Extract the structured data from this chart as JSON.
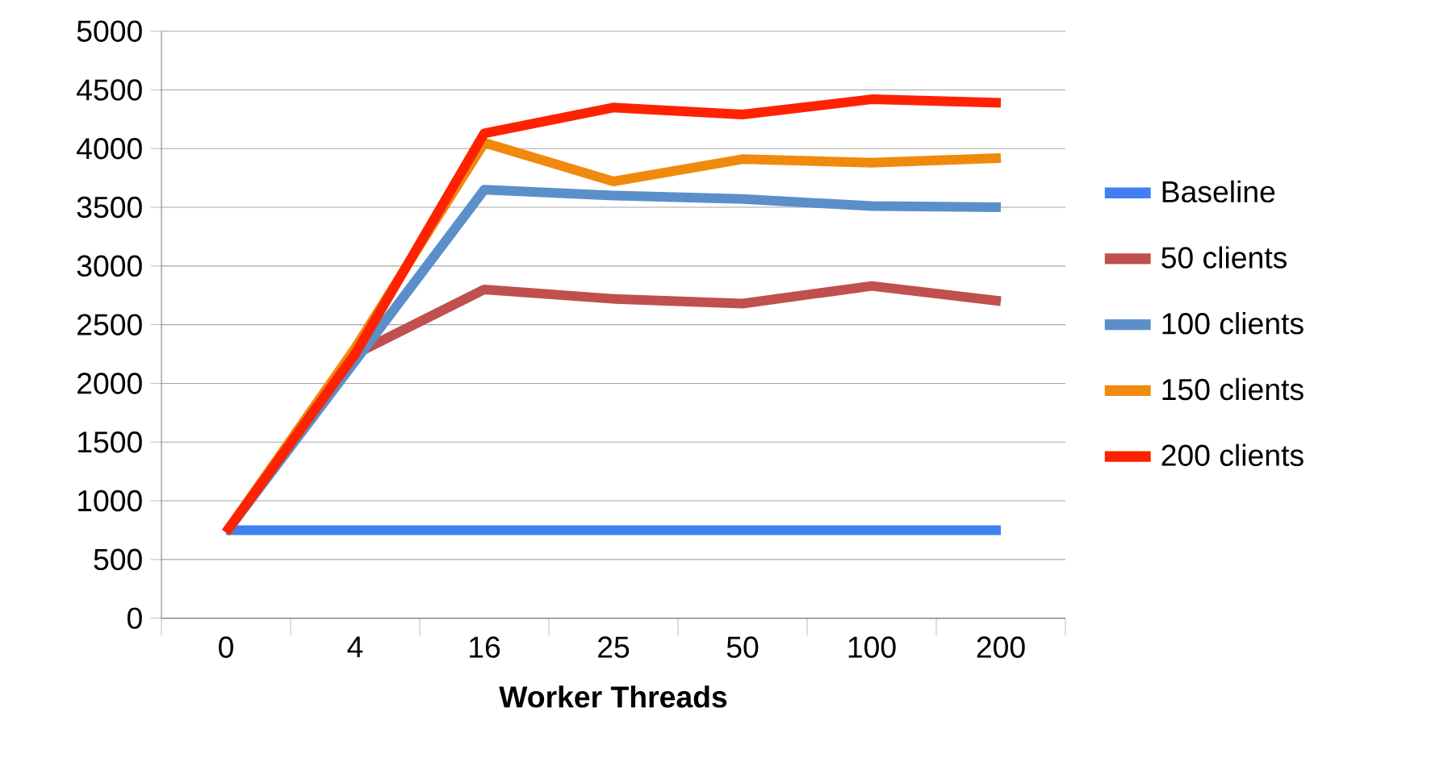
{
  "chart_data": {
    "type": "line",
    "xlabel": "Worker Threads",
    "categories": [
      "0",
      "4",
      "16",
      "25",
      "50",
      "100",
      "200"
    ],
    "ylim": [
      0,
      5000
    ],
    "yticks": [
      0,
      500,
      1000,
      1500,
      2000,
      2500,
      3000,
      3500,
      4000,
      4500,
      5000
    ],
    "grid": "y",
    "legend": "right",
    "marker": "none",
    "line_style": "solid",
    "series": [
      {
        "name": "Baseline",
        "color": "#3f7ff2",
        "values": [
          750,
          750,
          750,
          750,
          750,
          750,
          750
        ]
      },
      {
        "name": "50 clients",
        "color": "#c0504d",
        "values": [
          730,
          2250,
          2800,
          2720,
          2680,
          2830,
          2700
        ]
      },
      {
        "name": "100 clients",
        "color": "#5b8fc9",
        "values": [
          730,
          null,
          3650,
          3600,
          3570,
          3510,
          3500
        ]
      },
      {
        "name": "150 clients",
        "color": "#f08a0c",
        "values": [
          730,
          2300,
          4050,
          3720,
          3910,
          3880,
          3920
        ]
      },
      {
        "name": "200 clients",
        "color": "#ff2200",
        "values": [
          730,
          2250,
          4130,
          4350,
          4290,
          4420,
          4390
        ]
      }
    ]
  }
}
